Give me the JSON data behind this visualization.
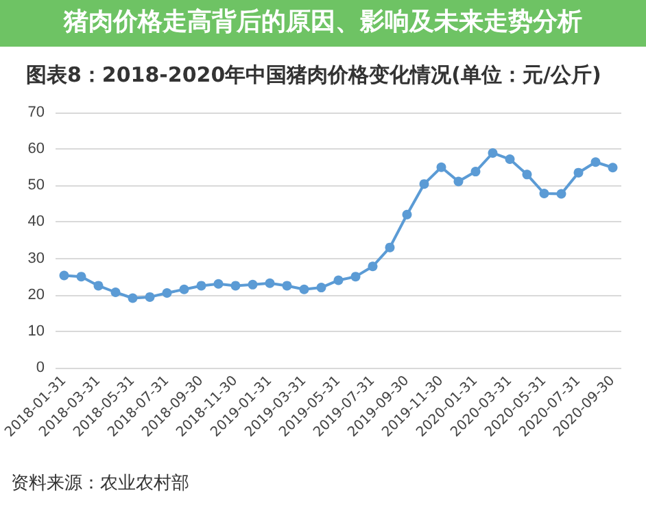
{
  "chart_data": {
    "type": "line",
    "title": "图表8：2018-2020年中国猪肉价格变化情况(单位：元/公斤)",
    "categories": [
      "2018-01-31",
      null,
      "2018-03-31",
      null,
      "2018-05-31",
      null,
      "2018-07-31",
      null,
      "2018-09-30",
      null,
      "2018-11-30",
      null,
      "2019-01-31",
      null,
      "2019-03-31",
      null,
      "2019-05-31",
      null,
      "2019-07-31",
      null,
      "2019-09-30",
      null,
      "2019-11-30",
      null,
      "2020-01-31",
      null,
      "2020-03-31",
      null,
      "2020-05-31",
      null,
      "2020-07-31",
      null,
      "2020-09-30"
    ],
    "series": [
      {
        "color": "#5b9bd5",
        "values": [
          25.3,
          25.0,
          22.5,
          20.7,
          19.1,
          19.4,
          20.5,
          21.5,
          22.5,
          23.0,
          22.5,
          22.8,
          23.2,
          22.5,
          21.5,
          22.0,
          24.0,
          25.0,
          27.8,
          33.0,
          42.0,
          50.4,
          55.0,
          51.1,
          53.8,
          58.9,
          57.2,
          53.0,
          47.8,
          47.7,
          53.5,
          56.4,
          54.9
        ]
      }
    ],
    "ylim": [
      0,
      70
    ],
    "yticks": [
      0,
      10,
      20,
      30,
      40,
      50,
      60,
      70
    ],
    "grid": "y",
    "marker": "circle",
    "line_style": "solid",
    "annotations": [
      "猪肉价格走高背后的原因、影响及未来走势分析",
      "资料来源：农业农村部"
    ]
  }
}
